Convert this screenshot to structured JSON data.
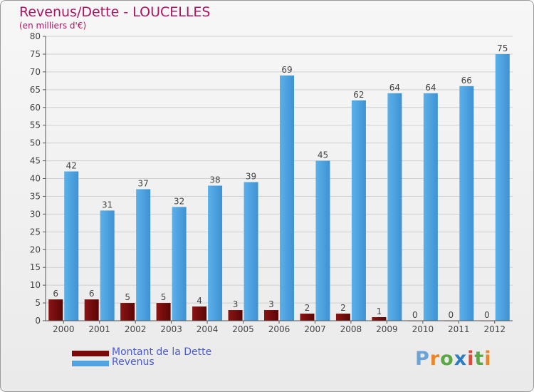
{
  "header": {
    "title": "Revenus/Dette - LOUCELLES",
    "subtitle": "(en milliers d'€)"
  },
  "logo": {
    "text": "Proxiti",
    "letter_colors": [
      "#6ba3d6",
      "#e8872a",
      "#5aa845",
      "#2a7cc4",
      "#d94c3d",
      "#5aa845",
      "#e8872a"
    ]
  },
  "colors": {
    "dette": "#7a0a0a",
    "revenus": "#4fa3e0",
    "axis": "#555555",
    "grid": "#cfcfcf",
    "title": "#b01262",
    "legend_text": "#4a5bd6"
  },
  "chart_data": {
    "type": "bar",
    "title": "Revenus/Dette - LOUCELLES",
    "subtitle": "(en milliers d'€)",
    "categories": [
      "2000",
      "2001",
      "2002",
      "2003",
      "2004",
      "2005",
      "2006",
      "2007",
      "2008",
      "2009",
      "2010",
      "2011",
      "2012"
    ],
    "series": [
      {
        "name": "Montant de la Dette",
        "values": [
          6,
          6,
          5,
          5,
          4,
          3,
          3,
          2,
          2,
          1,
          0,
          0,
          0
        ]
      },
      {
        "name": "Revenus",
        "values": [
          42,
          31,
          37,
          32,
          38,
          39,
          69,
          45,
          62,
          64,
          64,
          66,
          75
        ]
      }
    ],
    "ylim": [
      0,
      80
    ],
    "yticks": [
      0,
      5,
      10,
      15,
      20,
      25,
      30,
      35,
      40,
      45,
      50,
      55,
      60,
      65,
      70,
      75,
      80
    ],
    "grid": true,
    "legend_position": "bottom-left"
  }
}
